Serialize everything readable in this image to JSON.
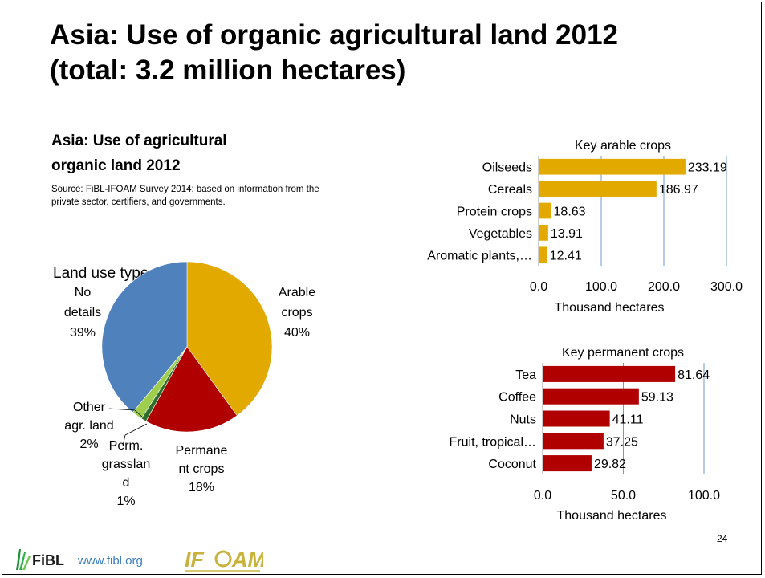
{
  "slide": {
    "title_line1": "Asia: Use of organic agricultural land 2012",
    "title_line2": "(total: 3.2 million hectares)",
    "subtitle_line1": "Asia: Use of agricultural",
    "subtitle_line2": "organic land 2012",
    "source": "Source: FiBL-IFOAM Survey 2014; based on information from the private sector, certifiers, and governments.",
    "page_number": "24",
    "footer": {
      "fibl_text": "FiBL",
      "url": "www.fibl.org",
      "ifoam_text": "IFOAM"
    }
  },
  "chart_data": [
    {
      "type": "pie",
      "title": "Land use types 2012",
      "slices": [
        {
          "label": "Arable crops",
          "percent_label": "40%",
          "value": 40,
          "color": "#e2a900"
        },
        {
          "label": "Permanent crops",
          "percent_label": "18%",
          "value": 18,
          "color": "#b00000"
        },
        {
          "label": "Perm. grassland",
          "percent_label": "1%",
          "value": 1,
          "color": "#2d6e2a"
        },
        {
          "label": "Other agr. land",
          "percent_label": "2%",
          "value": 2,
          "color": "#9fcd4e"
        },
        {
          "label": "No details",
          "percent_label": "39%",
          "value": 39,
          "color": "#4f81bd"
        }
      ],
      "label_lines": {
        "arable": [
          "Arable",
          "crops",
          "40%"
        ],
        "permanent": [
          "Permane",
          "nt crops",
          "18%"
        ],
        "grassland": [
          "Perm.",
          "grasslan",
          "d",
          "1%"
        ],
        "other": [
          "Other",
          "agr. land",
          "2%"
        ],
        "nodetails": [
          "No",
          "details",
          "39%"
        ]
      }
    },
    {
      "type": "bar",
      "orientation": "horizontal",
      "title": "Key arable crops",
      "xlabel": "Thousand hectares",
      "categories": [
        "Oilseeds",
        "Cereals",
        "Protein crops",
        "Vegetables",
        "Aromatic plants,…"
      ],
      "values": [
        233.19,
        186.97,
        18.63,
        13.91,
        12.41
      ],
      "value_labels": [
        "233.19",
        "186.97",
        "18.63",
        "13.91",
        "12.41"
      ],
      "xlim": [
        0,
        300
      ],
      "ticks": [
        0,
        100,
        200,
        300
      ],
      "tick_labels": [
        "0.0",
        "100.0",
        "200.0",
        "300.0"
      ],
      "color": "#e2a900",
      "grid": true
    },
    {
      "type": "bar",
      "orientation": "horizontal",
      "title": "Key permanent crops",
      "xlabel": "Thousand hectares",
      "categories": [
        "Tea",
        "Coffee",
        "Nuts",
        "Fruit, tropical…",
        "Coconut"
      ],
      "values": [
        81.64,
        59.13,
        41.11,
        37.25,
        29.82
      ],
      "value_labels": [
        "81.64",
        "59.13",
        "41.11",
        "37.25",
        "29.82"
      ],
      "xlim": [
        0,
        100
      ],
      "ticks": [
        0,
        50,
        100
      ],
      "tick_labels": [
        "0.0",
        "50.0",
        "100.0"
      ],
      "color": "#b00000",
      "grid": true
    }
  ]
}
